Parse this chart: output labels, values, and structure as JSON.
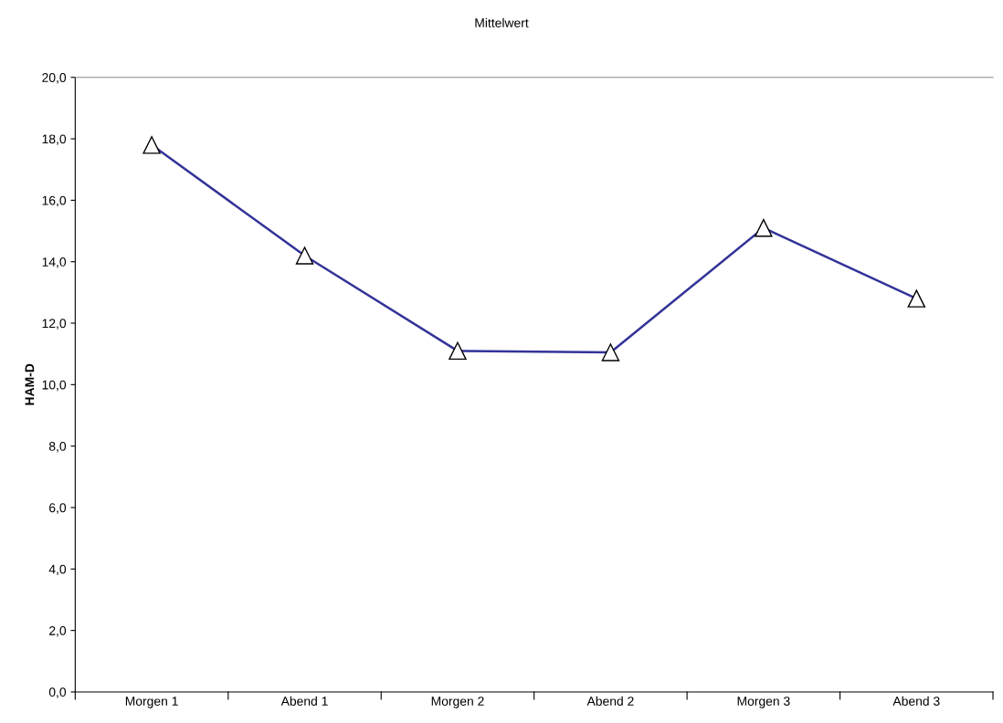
{
  "chart_data": {
    "type": "line",
    "title": "Mittelwert",
    "ylabel": "HAM-D",
    "categories": [
      "Morgen 1",
      "Abend 1",
      "Morgen 2",
      "Abend 2",
      "Morgen 3",
      "Abend 3"
    ],
    "series": [
      {
        "color": "#333399",
        "values": [
          17.8,
          14.2,
          11.1,
          11.05,
          15.1,
          12.8
        ]
      }
    ],
    "ylim": [
      0,
      20
    ],
    "yticks": [
      {
        "value": 0,
        "label": "0,0"
      },
      {
        "value": 2,
        "label": "2,0"
      },
      {
        "value": 4,
        "label": "4,0"
      },
      {
        "value": 6,
        "label": "6,0"
      },
      {
        "value": 8,
        "label": "8,0"
      },
      {
        "value": 10,
        "label": "10,0"
      },
      {
        "value": 12,
        "label": "12,0"
      },
      {
        "value": 14,
        "label": "14,0"
      },
      {
        "value": 16,
        "label": "16,0"
      },
      {
        "value": 18,
        "label": "18,0"
      },
      {
        "value": 20,
        "label": "20,0"
      }
    ],
    "marker": "triangle",
    "line_style": "solid",
    "grid": false,
    "legend": false
  }
}
